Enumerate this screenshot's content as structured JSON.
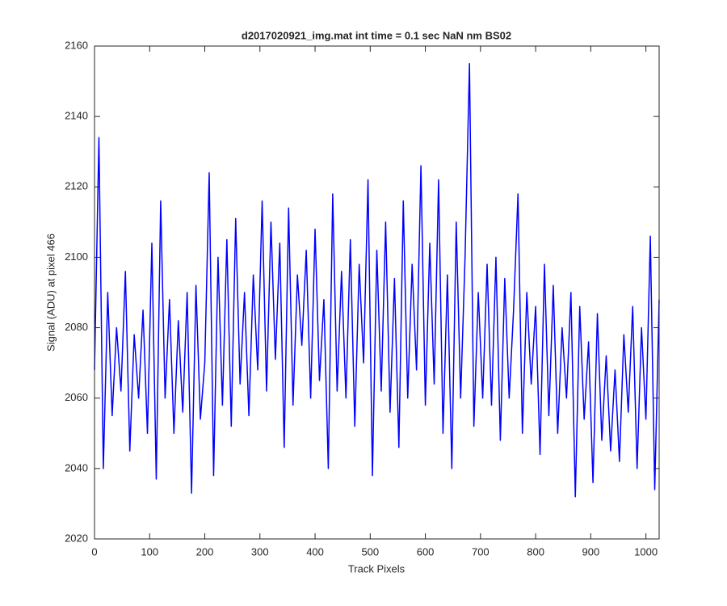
{
  "chart_data": {
    "type": "line",
    "title": "d2017020921_img.mat int time = 0.1 sec  NaN nm BS02",
    "x_label": "Track Pixels",
    "y_label": "Signal (ADU) at pixel 466",
    "xlim": [
      0,
      1024
    ],
    "ylim": [
      2020,
      2160
    ],
    "xticks": [
      0,
      100,
      200,
      300,
      400,
      500,
      600,
      700,
      800,
      900,
      1000
    ],
    "yticks": [
      2020,
      2040,
      2060,
      2080,
      2100,
      2120,
      2140,
      2160
    ],
    "series": [
      {
        "color": "#0000ff",
        "x": [
          0,
          8,
          16,
          24,
          32,
          40,
          48,
          56,
          64,
          72,
          80,
          88,
          96,
          104,
          112,
          120,
          128,
          136,
          144,
          152,
          160,
          168,
          176,
          184,
          192,
          200,
          208,
          216,
          224,
          232,
          240,
          248,
          256,
          264,
          272,
          280,
          288,
          296,
          304,
          312,
          320,
          328,
          336,
          344,
          352,
          360,
          368,
          376,
          384,
          392,
          400,
          408,
          416,
          424,
          432,
          440,
          448,
          456,
          464,
          472,
          480,
          488,
          496,
          504,
          512,
          520,
          528,
          536,
          544,
          552,
          560,
          568,
          576,
          584,
          592,
          600,
          608,
          616,
          624,
          632,
          640,
          648,
          656,
          664,
          672,
          680,
          688,
          696,
          704,
          712,
          720,
          728,
          736,
          744,
          752,
          760,
          768,
          776,
          784,
          792,
          800,
          808,
          816,
          824,
          832,
          840,
          848,
          856,
          864,
          872,
          880,
          888,
          896,
          904,
          912,
          920,
          928,
          936,
          944,
          952,
          960,
          968,
          976,
          984,
          992,
          1000,
          1008,
          1016,
          1024
        ],
        "values": [
          2068,
          2134,
          2040,
          2090,
          2055,
          2080,
          2062,
          2096,
          2045,
          2078,
          2060,
          2085,
          2050,
          2104,
          2037,
          2116,
          2060,
          2088,
          2050,
          2082,
          2056,
          2090,
          2033,
          2092,
          2054,
          2070,
          2124,
          2038,
          2100,
          2058,
          2105,
          2052,
          2111,
          2064,
          2090,
          2055,
          2095,
          2068,
          2116,
          2062,
          2110,
          2071,
          2104,
          2046,
          2114,
          2058,
          2095,
          2075,
          2102,
          2060,
          2108,
          2065,
          2088,
          2040,
          2118,
          2062,
          2096,
          2060,
          2105,
          2052,
          2098,
          2070,
          2122,
          2038,
          2102,
          2062,
          2110,
          2056,
          2094,
          2046,
          2116,
          2060,
          2098,
          2068,
          2126,
          2058,
          2104,
          2064,
          2122,
          2050,
          2095,
          2040,
          2110,
          2060,
          2100,
          2155,
          2052,
          2090,
          2060,
          2098,
          2058,
          2100,
          2048,
          2094,
          2060,
          2085,
          2118,
          2050,
          2090,
          2064,
          2086,
          2044,
          2098,
          2055,
          2092,
          2050,
          2080,
          2060,
          2090,
          2032,
          2086,
          2054,
          2076,
          2036,
          2084,
          2048,
          2072,
          2045,
          2068,
          2042,
          2078,
          2056,
          2086,
          2040,
          2080,
          2054,
          2106,
          2034,
          2088
        ]
      }
    ]
  }
}
